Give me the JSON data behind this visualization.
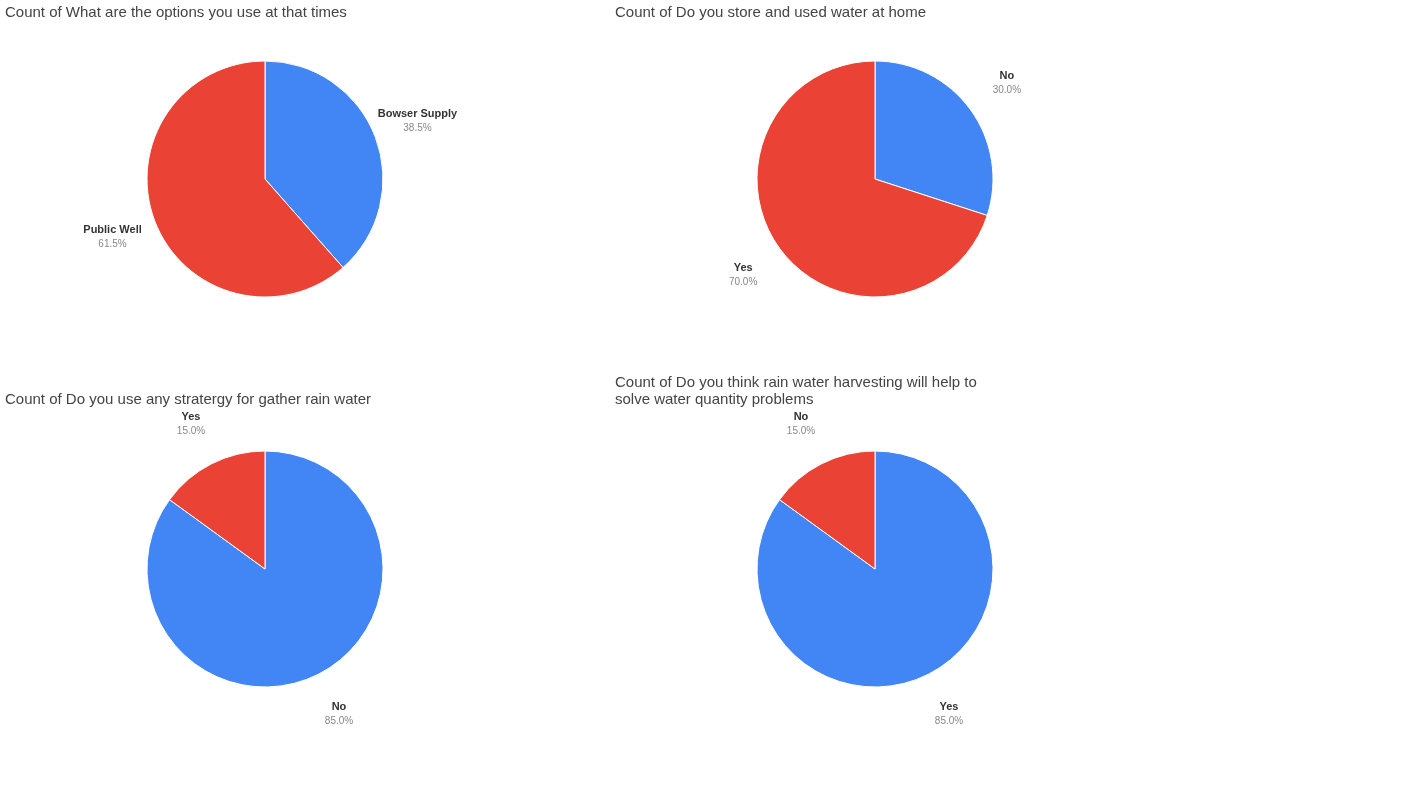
{
  "chart_data": [
    {
      "type": "pie",
      "title": "Count of What are the options you use at that times",
      "categories": [
        "Bowser Supply",
        "Public Well"
      ],
      "values": [
        38.5,
        61.5
      ],
      "colors": [
        "#4285f4",
        "#ea4335"
      ],
      "value_labels": [
        "38.5%",
        "61.5%"
      ],
      "legend": false
    },
    {
      "type": "pie",
      "title": "Count of Do you store and used water at home",
      "categories": [
        "No",
        "Yes"
      ],
      "values": [
        30.0,
        70.0
      ],
      "colors": [
        "#4285f4",
        "#ea4335"
      ],
      "value_labels": [
        "30.0%",
        "70.0%"
      ],
      "legend": false
    },
    {
      "type": "pie",
      "title": "Count of Do you use any stratergy for gather rain water",
      "categories": [
        "No",
        "Yes"
      ],
      "values": [
        85.0,
        15.0
      ],
      "colors": [
        "#4285f4",
        "#ea4335"
      ],
      "value_labels": [
        "85.0%",
        "15.0%"
      ],
      "legend": false
    },
    {
      "type": "pie",
      "title": "Count of Do you think rain water harvesting will help to\nsolve water quantity problems",
      "categories": [
        "Yes",
        "No"
      ],
      "values": [
        85.0,
        15.0
      ],
      "colors": [
        "#4285f4",
        "#ea4335"
      ],
      "value_labels": [
        "85.0%",
        "15.0%"
      ],
      "legend": false
    }
  ]
}
